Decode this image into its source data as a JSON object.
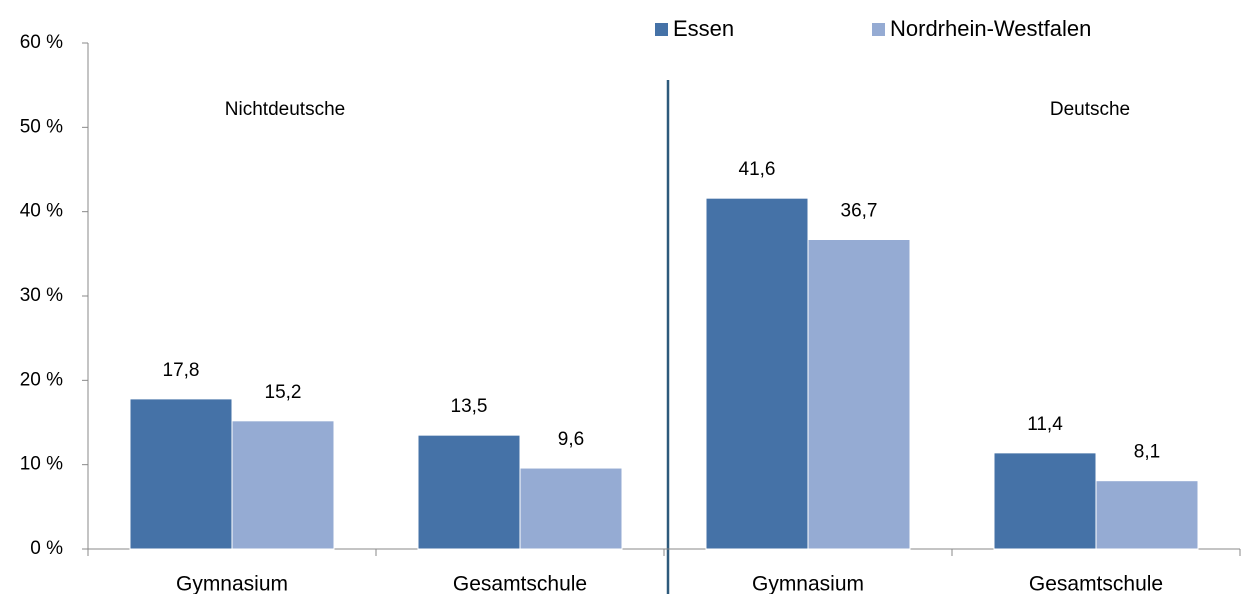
{
  "chart_data": {
    "type": "bar",
    "categories": [
      "Gymnasium",
      "Gesamtschule",
      "Gymnasium",
      "Gesamtschule"
    ],
    "series": [
      {
        "name": "Essen",
        "color": "#4572a7",
        "values": [
          17.8,
          13.5,
          41.6,
          11.4
        ],
        "value_labels": [
          "17,8",
          "13,5",
          "41,6",
          "11,4"
        ]
      },
      {
        "name": "Nordrhein-Westfalen",
        "color": "#95abd3",
        "values": [
          15.2,
          9.6,
          36.7,
          8.1
        ],
        "value_labels": [
          "15,2",
          "9,6",
          "36,7",
          "8,1"
        ]
      }
    ],
    "annotations": [
      "Nichtdeutsche",
      "Deutsche"
    ],
    "ylim": [
      0,
      60
    ],
    "yticks": [
      {
        "value": 0,
        "label": "0 %"
      },
      {
        "value": 10,
        "label": "10 %"
      },
      {
        "value": 20,
        "label": "20 %"
      },
      {
        "value": 30,
        "label": "30 %"
      },
      {
        "value": 40,
        "label": "40 %"
      },
      {
        "value": 50,
        "label": "50 %"
      },
      {
        "value": 60,
        "label": "60 %"
      }
    ],
    "grid": false,
    "legend": "top"
  }
}
